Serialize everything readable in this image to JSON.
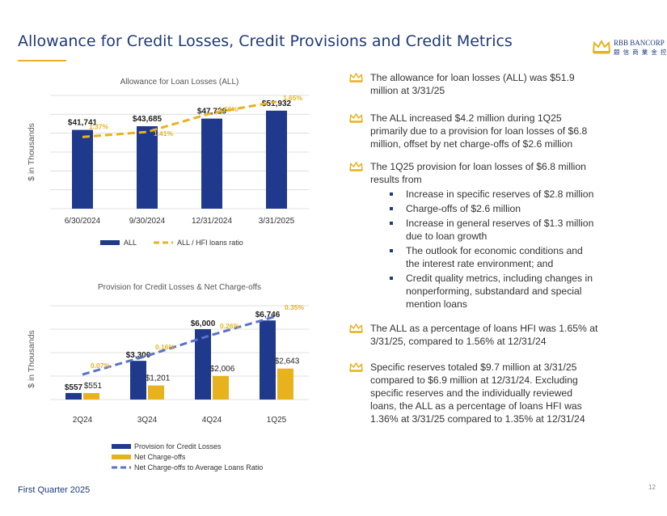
{
  "page": {
    "title": "Allowance for Credit Losses, Credit Provisions and Credit Metrics",
    "footer": "First Quarter 2025",
    "page_number": "12"
  },
  "logo": {
    "name": "RBB BANCORP",
    "chinese": "銀 信 商 業 金 控",
    "color": "#1f3a7a",
    "accent": "#e8b21f"
  },
  "colors": {
    "navy": "#1f3a8c",
    "gold": "#e8b21f",
    "dashed_blue": "#5a72c8",
    "grid": "#d9d9d9"
  },
  "chart_data": [
    {
      "type": "bar",
      "title": "Allowance for Loan Losses (ALL)",
      "ylabel": "$ in Thousands",
      "categories": [
        "6/30/2024",
        "9/30/2024",
        "12/31/2024",
        "3/31/2025"
      ],
      "ylim": [
        0,
        60000
      ],
      "series": [
        {
          "name": "ALL",
          "kind": "bar",
          "values": [
            41741,
            43685,
            47729,
            51932
          ],
          "labels": [
            "$41,741",
            "$43,685",
            "$47,729",
            "$51,932"
          ]
        },
        {
          "name": "ALL / HFI loans ratio",
          "kind": "dashed-line",
          "values": [
            1.37,
            1.41,
            1.56,
            1.65
          ],
          "labels": [
            "1.37%",
            "1.41%",
            "1.56%",
            "1.65%"
          ],
          "ylim": [
            0.8,
            1.7
          ]
        }
      ],
      "legend": "bottom",
      "grid": true
    },
    {
      "type": "bar",
      "title": "Provision for Credit Losses & Net Charge-offs",
      "ylabel": "$ in Thousands",
      "categories": [
        "2Q24",
        "3Q24",
        "4Q24",
        "1Q25"
      ],
      "ylim": [
        0,
        8000
      ],
      "series": [
        {
          "name": "Provision for Credit Losses",
          "kind": "bar",
          "values": [
            557,
            3300,
            6000,
            6746
          ],
          "labels": [
            "$557",
            "$3,300",
            "$6,000",
            "$6,746"
          ]
        },
        {
          "name": "Net Charge-offs",
          "kind": "bar",
          "values": [
            551,
            1201,
            2006,
            2643
          ],
          "labels": [
            "$551",
            "$1,201",
            "$2,006",
            "$2,643"
          ]
        },
        {
          "name": "Net Charge-offs to Average Loans Ratio",
          "kind": "dashed-line",
          "values": [
            0.07,
            0.16,
            0.26,
            0.35
          ],
          "labels": [
            "0.07%",
            "0.16%",
            "0.26%",
            "0.35%"
          ],
          "ylim": [
            -0.05,
            0.4
          ]
        }
      ],
      "legend": "bottom",
      "grid": true
    }
  ],
  "bullets": [
    {
      "text": "The allowance for loan losses (ALL) was $51.9\nmillion at 3/31/25"
    },
    {
      "text": "The ALL increased $4.2 million during 1Q25\nprimarily due to a provision for loan losses of $6.8\nmillion, offset by net charge-offs of $2.6 million"
    },
    {
      "text": "The 1Q25 provision for loan losses of $6.8 million\nresults from",
      "sub": [
        "Increase in specific reserves of $2.8 million",
        "Charge-offs of $2.6 million",
        "Increase in general reserves of $1.3 million\ndue to loan growth",
        "The outlook for economic conditions and\nthe interest rate environment; and",
        "Credit quality metrics, including  changes in\nnonperforming, substandard and special\nmention loans"
      ]
    },
    {
      "text": "The ALL as a percentage of loans HFI was 1.65% at\n3/31/25, compared to 1.56% at 12/31/24"
    },
    {
      "text": "Specific reserves totaled $9.7 million at 3/31/25\ncompared to  $6.9 million at 12/31/24. Excluding\nspecific reserves and the individually reviewed\nloans, the ALL as a percentage of loans HFI was\n1.36% at 3/31/25 compared to 1.35% at 12/31/24"
    }
  ]
}
